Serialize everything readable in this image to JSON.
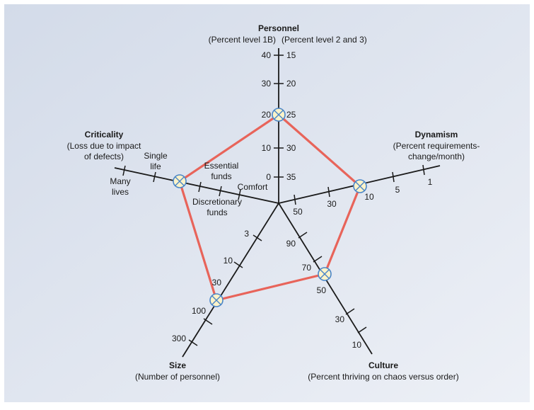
{
  "colors": {
    "bg_top": "#d3dbe9",
    "bg_bottom": "#edf0f6",
    "axis": "#1a1a1a",
    "polygon": "#e8645a",
    "marker_fill": "#fdf3c8",
    "marker_stroke": "#4a86c8"
  },
  "axes": {
    "personnel": {
      "title": "Personnel",
      "subtitle_left": "(Percent level 1B)",
      "subtitle_right": "(Percent level 2 and 3)",
      "left_ticks": [
        "40",
        "30",
        "20",
        "10",
        "0"
      ],
      "right_ticks": [
        "15",
        "20",
        "25",
        "30",
        "35"
      ]
    },
    "dynamism": {
      "title": "Dynamism",
      "subtitle_1": "(Percent requirements-",
      "subtitle_2": "change/month)",
      "ticks": [
        "50",
        "30",
        "10",
        "5",
        "1"
      ]
    },
    "culture": {
      "title": "Culture",
      "subtitle": "(Percent thriving on chaos versus order)",
      "ticks": [
        "90",
        "70",
        "50",
        "30",
        "10"
      ]
    },
    "size": {
      "title": "Size",
      "subtitle": "(Number of personnel)",
      "ticks": [
        "3",
        "10",
        "30",
        "100",
        "300"
      ]
    },
    "criticality": {
      "title": "Criticality",
      "subtitle_1": "(Loss due to impact",
      "subtitle_2": "of defects)",
      "ticks": {
        "comfort": "Comfort",
        "discretionary_1": "Discretionary",
        "discretionary_2": "funds",
        "essential_1": "Essential",
        "essential_2": "funds",
        "single_1": "Single",
        "single_2": "life",
        "many_1": "Many",
        "many_2": "lives"
      }
    }
  },
  "profile": {
    "personnel": "20 / 25",
    "dynamism": "10",
    "culture": "50",
    "size": "30",
    "criticality": "Single life"
  }
}
